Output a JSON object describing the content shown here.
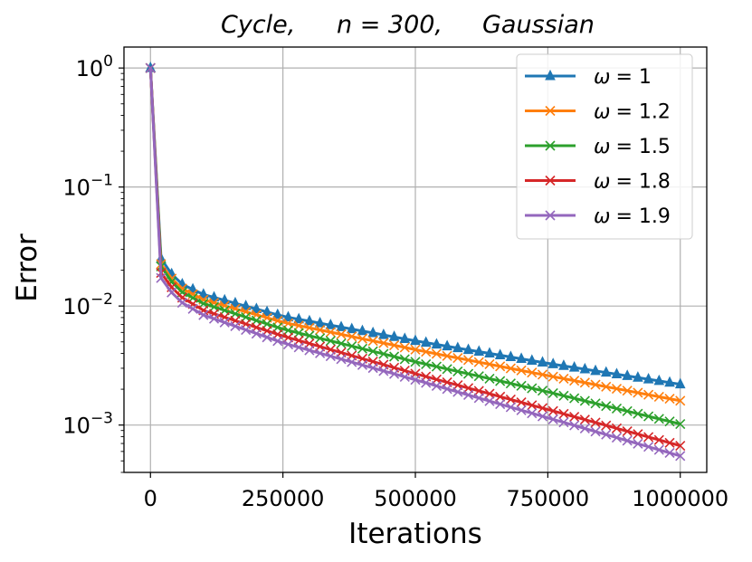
{
  "chart_data": {
    "type": "line",
    "title_parts": [
      "Cycle,",
      "n = 300,",
      "Gaussian"
    ],
    "xlabel": "Iterations",
    "ylabel": "Error",
    "yscale": "log",
    "xlim": [
      -50000,
      1050000
    ],
    "ylim": [
      0.0004,
      1.5
    ],
    "x_ticks": [
      0,
      250000,
      500000,
      750000,
      1000000
    ],
    "x_tick_labels": [
      "0",
      "250000",
      "500000",
      "750000",
      "1000000"
    ],
    "y_ticks": [
      1,
      0.1,
      0.01,
      0.001
    ],
    "y_tick_labels": [
      {
        "base": "10",
        "exp": "0"
      },
      {
        "base": "10",
        "exp": "−1"
      },
      {
        "base": "10",
        "exp": "−2"
      },
      {
        "base": "10",
        "exp": "−3"
      }
    ],
    "grid": true,
    "legend_position": "top-right",
    "series": [
      {
        "name": "ω = 1",
        "label_symbol": "ω",
        "label_value": "= 1",
        "color": "#1f77b4",
        "marker": "triangle",
        "points": [
          [
            0,
            1.0
          ],
          [
            20000,
            0.025
          ],
          [
            50000,
            0.016
          ],
          [
            100000,
            0.0125
          ],
          [
            250000,
            0.0082
          ],
          [
            500000,
            0.0051
          ],
          [
            750000,
            0.0033
          ],
          [
            1000000,
            0.0022
          ]
        ]
      },
      {
        "name": "ω = 1.2",
        "label_symbol": "ω",
        "label_value": "= 1.2",
        "color": "#ff7f0e",
        "marker": "x",
        "points": [
          [
            0,
            1.0
          ],
          [
            20000,
            0.0225
          ],
          [
            50000,
            0.0148
          ],
          [
            100000,
            0.0113
          ],
          [
            250000,
            0.0073
          ],
          [
            500000,
            0.0043
          ],
          [
            750000,
            0.0026
          ],
          [
            1000000,
            0.0016
          ]
        ]
      },
      {
        "name": "ω = 1.5",
        "label_symbol": "ω",
        "label_value": "= 1.5",
        "color": "#2ca02c",
        "marker": "x",
        "points": [
          [
            0,
            1.0
          ],
          [
            20000,
            0.0215
          ],
          [
            50000,
            0.0138
          ],
          [
            100000,
            0.0105
          ],
          [
            250000,
            0.0064
          ],
          [
            500000,
            0.0034
          ],
          [
            750000,
            0.0019
          ],
          [
            1000000,
            0.00102
          ]
        ]
      },
      {
        "name": "ω = 1.8",
        "label_symbol": "ω",
        "label_value": "= 1.8",
        "color": "#d62728",
        "marker": "x",
        "points": [
          [
            0,
            1.0
          ],
          [
            20000,
            0.019
          ],
          [
            50000,
            0.0125
          ],
          [
            100000,
            0.0092
          ],
          [
            250000,
            0.0056
          ],
          [
            500000,
            0.0027
          ],
          [
            750000,
            0.00135
          ],
          [
            1000000,
            0.00067
          ]
        ]
      },
      {
        "name": "ω = 1.9",
        "label_symbol": "ω",
        "label_value": "= 1.9",
        "color": "#9467bd",
        "marker": "x",
        "points": [
          [
            0,
            1.0
          ],
          [
            20000,
            0.0172
          ],
          [
            50000,
            0.0113
          ],
          [
            100000,
            0.0084
          ],
          [
            250000,
            0.0049
          ],
          [
            500000,
            0.0024
          ],
          [
            750000,
            0.00115
          ],
          [
            1000000,
            0.00055
          ]
        ]
      }
    ]
  }
}
